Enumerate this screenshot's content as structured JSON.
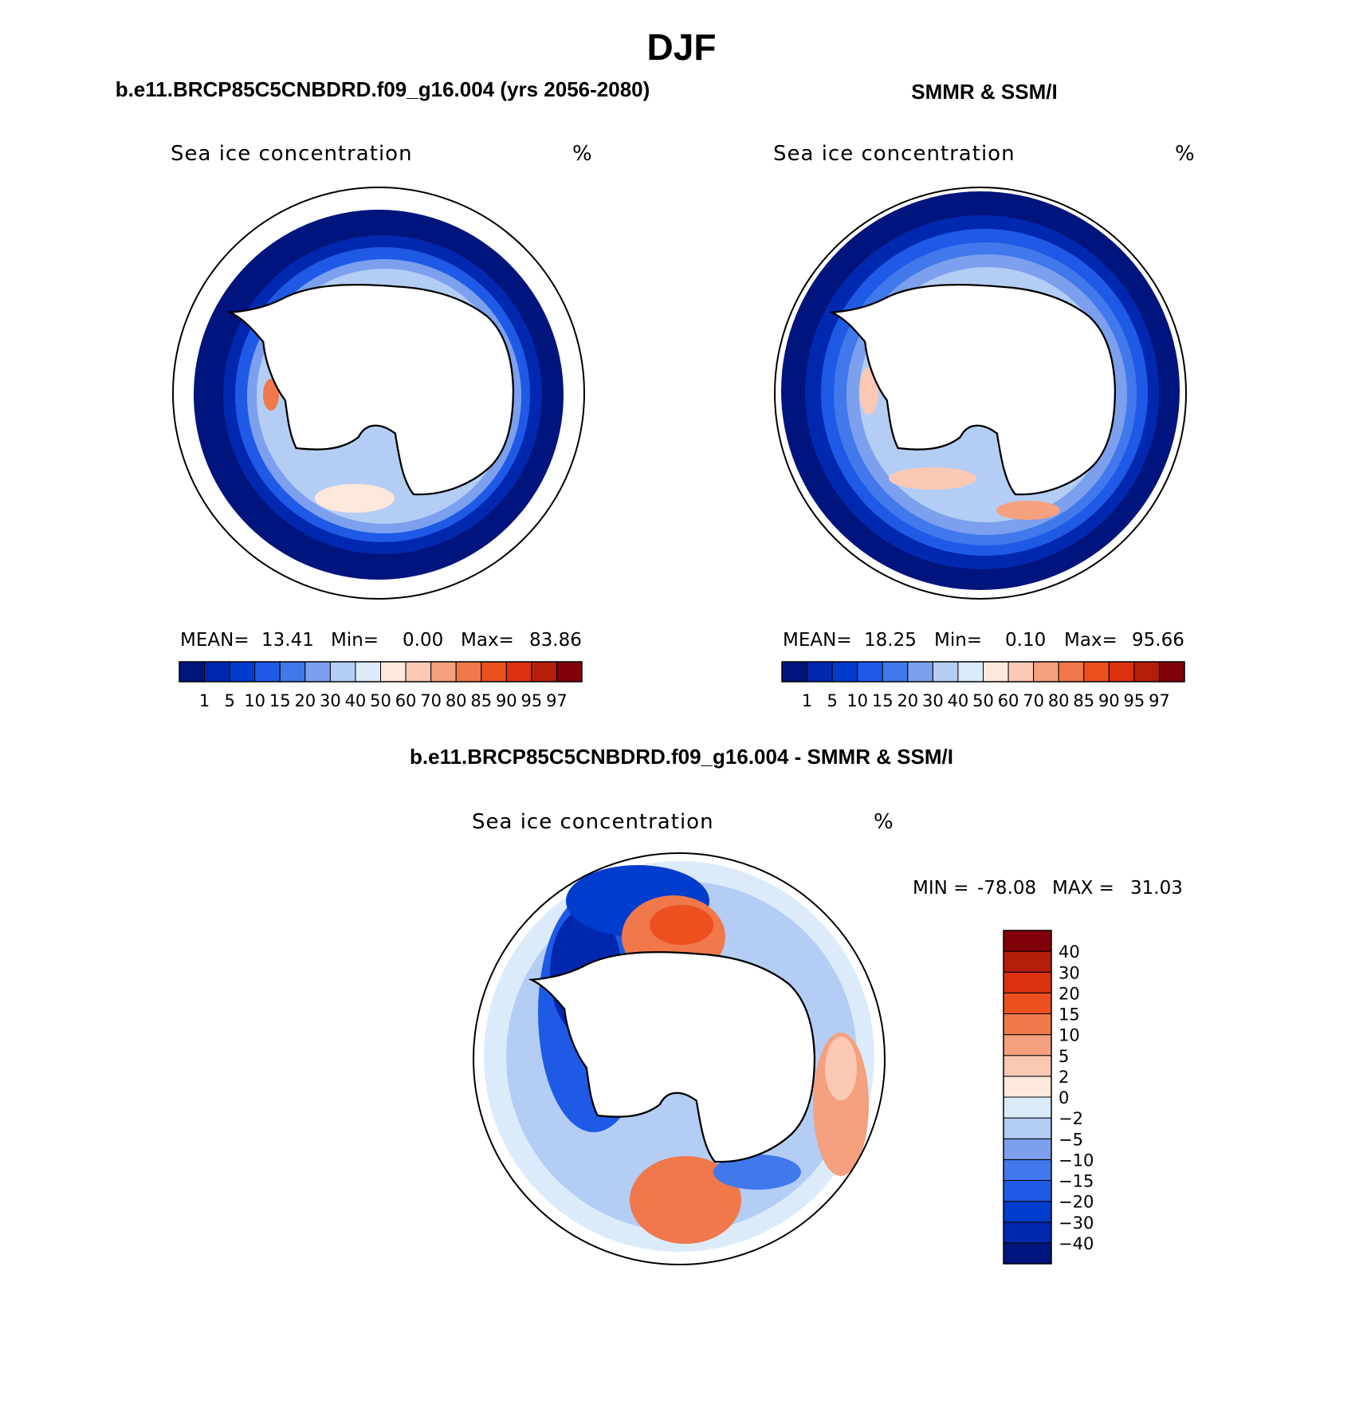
{
  "page": {
    "season": "DJF",
    "left_title": "b.e11.BRCP85C5CNBDRD.f09_g16.004 (yrs 2056-2080)",
    "right_title": "SMMR & SSM/I",
    "bottom_title": "b.e11.BRCP85C5CNBDRD.f09_g16.004 - SMMR & SSM/I"
  },
  "colors": {
    "abs_scale": [
      "#00147d",
      "#0028af",
      "#003ccd",
      "#1e5ae6",
      "#4178eb",
      "#7ca0ee",
      "#b4cdf5",
      "#dcebfa",
      "#fde8dc",
      "#fbc8b4",
      "#f5a07e",
      "#f0784b",
      "#eb501e",
      "#dc320f",
      "#b41e0a",
      "#82000a"
    ],
    "diff_scale": [
      "#00147d",
      "#0028af",
      "#003ccd",
      "#1e5ae6",
      "#4178eb",
      "#7ca0ee",
      "#b4cdf5",
      "#dcebfa",
      "#fde8dc",
      "#fbc8b4",
      "#f5a07e",
      "#f0784b",
      "#eb501e",
      "#dc320f",
      "#b41e0a",
      "#82000a"
    ],
    "land": "#ffffff",
    "outline": "#000000"
  },
  "chart_data": [
    {
      "type": "heatmap",
      "projection": "south-polar-stereographic",
      "subtitle": "b.e11.BRCP85C5CNBDRD.f09_g16.004 (yrs 2056-2080)",
      "field_label": "Sea ice concentration",
      "units": "%",
      "stats": {
        "mean_label": "MEAN=",
        "mean": "13.41",
        "min_label": "Min=",
        "min": "0.00",
        "max_label": "Max=",
        "max": "83.86"
      },
      "colorbar": {
        "orientation": "horizontal",
        "levels": [
          "1",
          "5",
          "10",
          "15",
          "20",
          "30",
          "40",
          "50",
          "60",
          "70",
          "80",
          "85",
          "90",
          "95",
          "97"
        ]
      }
    },
    {
      "type": "heatmap",
      "projection": "south-polar-stereographic",
      "subtitle": "SMMR & SSM/I",
      "field_label": "Sea ice concentration",
      "units": "%",
      "stats": {
        "mean_label": "MEAN=",
        "mean": "18.25",
        "min_label": "Min=",
        "min": "0.10",
        "max_label": "Max=",
        "max": "95.66"
      },
      "colorbar": {
        "orientation": "horizontal",
        "levels": [
          "1",
          "5",
          "10",
          "15",
          "20",
          "30",
          "40",
          "50",
          "60",
          "70",
          "80",
          "85",
          "90",
          "95",
          "97"
        ]
      }
    },
    {
      "type": "heatmap",
      "projection": "south-polar-stereographic",
      "subtitle": "b.e11.BRCP85C5CNBDRD.f09_g16.004 - SMMR & SSM/I",
      "field_label": "Sea ice concentration",
      "units": "%",
      "stats": {
        "min_label": "MIN =",
        "min": "-78.08",
        "max_label": "MAX =",
        "max": "31.03"
      },
      "colorbar": {
        "orientation": "vertical",
        "levels": [
          "-40",
          "-30",
          "-20",
          "-15",
          "-10",
          "-5",
          "-2",
          "0",
          "2",
          "5",
          "10",
          "15",
          "20",
          "30",
          "40"
        ]
      }
    }
  ]
}
